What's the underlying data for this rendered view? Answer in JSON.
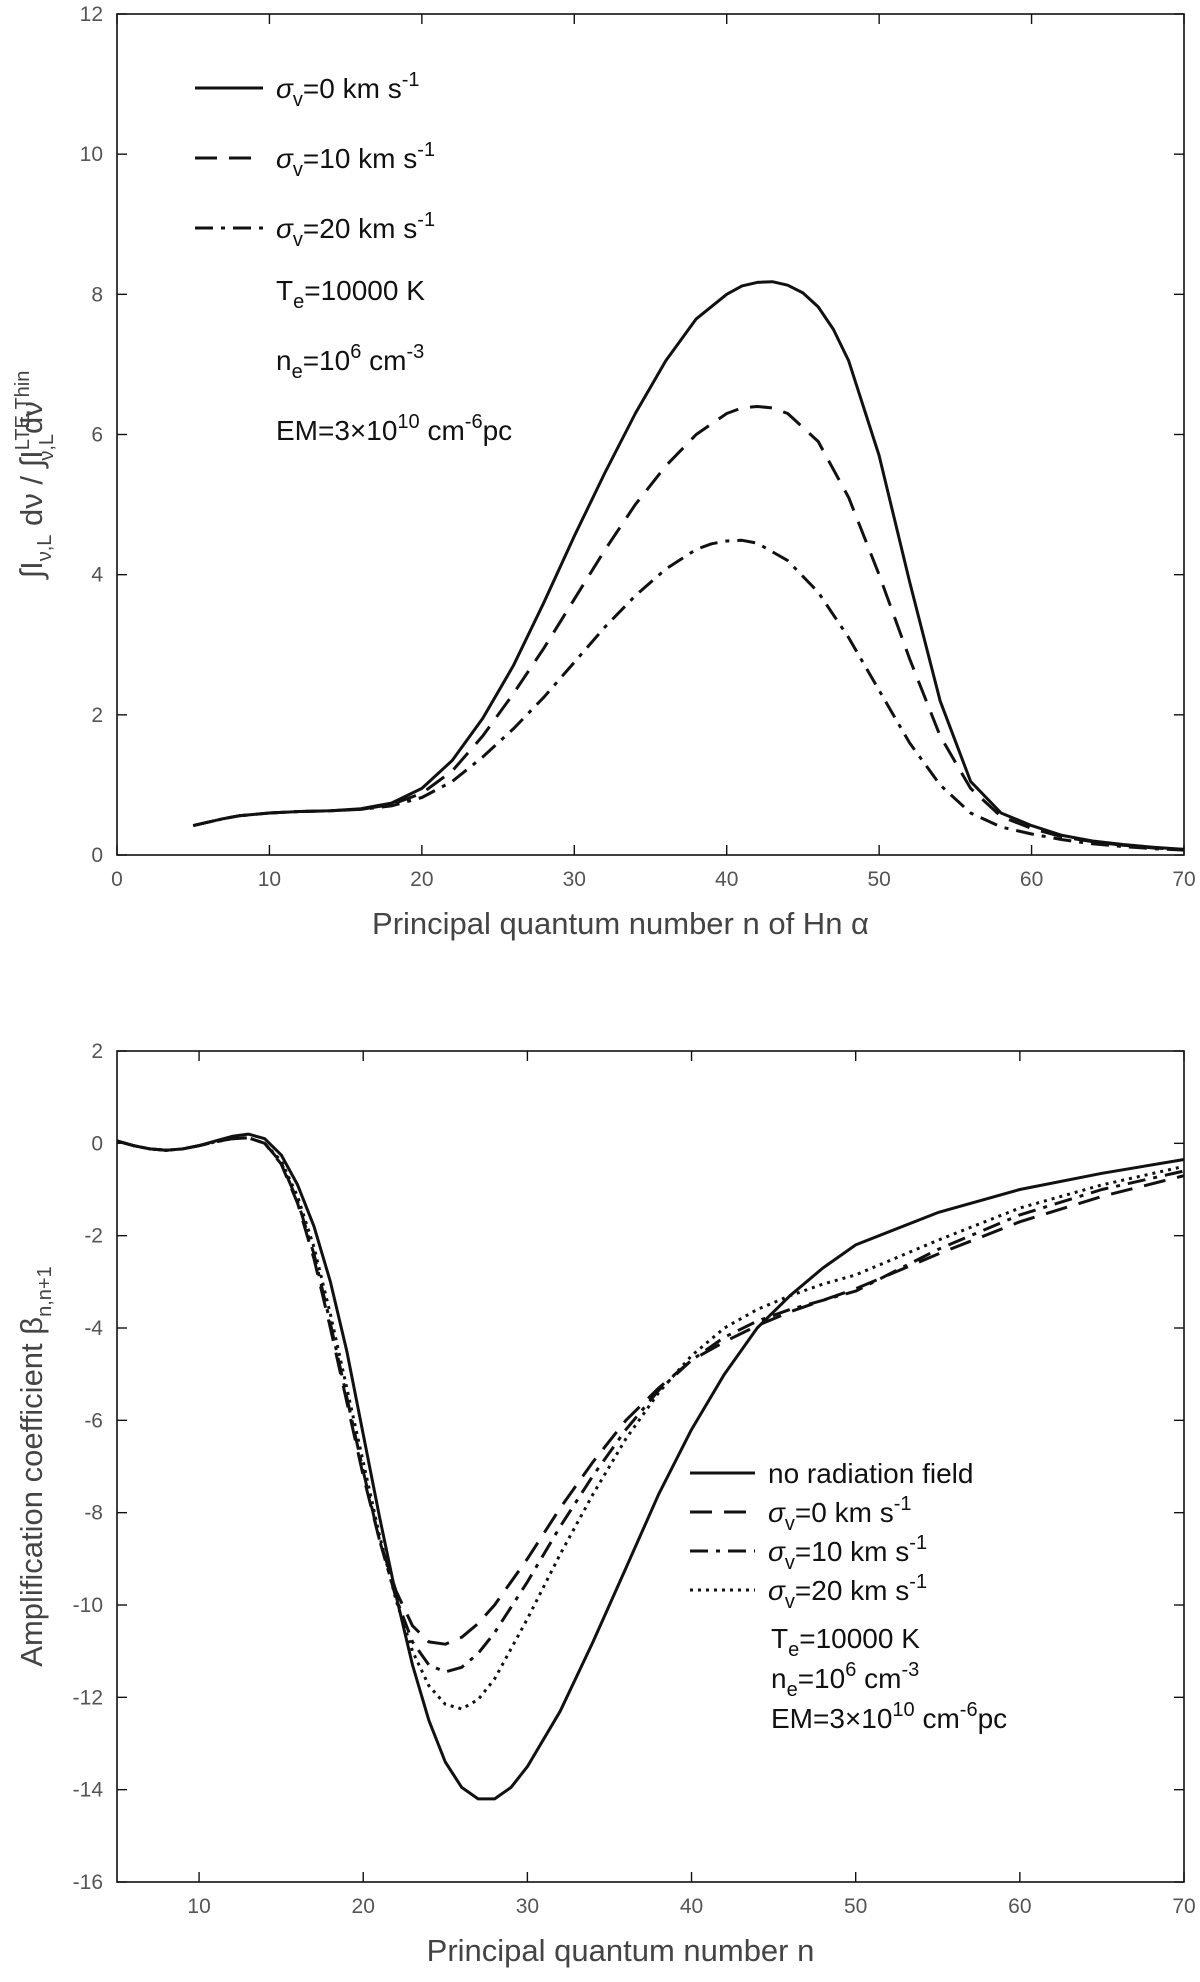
{
  "chart_data": [
    {
      "type": "line",
      "id": "top",
      "xlabel": "Principal quantum number n of Hn α",
      "ylabel": "∫I_{ν,L} dν / ∫I_{ν,L}^{LTE,Thin} dν",
      "ylabel_parts": {
        "a": "∫I",
        "a_sub": "ν,L",
        "b": " dν / ∫I",
        "b_sup": "LTE,Thin",
        "b_sub": "ν,L",
        "c": "dν"
      },
      "xlim": [
        0,
        70
      ],
      "ylim": [
        0,
        12
      ],
      "xticks": [
        "0",
        "10",
        "20",
        "30",
        "40",
        "50",
        "60",
        "70"
      ],
      "yticks": [
        "0",
        "2",
        "4",
        "6",
        "8",
        "10",
        "12"
      ],
      "legend_position": "top-left",
      "series": [
        {
          "name": "σv=0 km s-1",
          "label": {
            "sym": "σ",
            "sub": "v",
            "text": "=0 km s",
            "sup": "-1"
          },
          "style": "solid",
          "x": [
            5,
            6,
            7,
            8,
            9,
            10,
            12,
            14,
            16,
            18,
            20,
            22,
            24,
            26,
            28,
            30,
            32,
            34,
            36,
            38,
            40,
            41,
            42,
            43,
            44,
            45,
            46,
            47,
            48,
            50,
            52,
            54,
            56,
            58,
            60,
            62,
            64,
            66,
            68,
            70
          ],
          "y": [
            0.42,
            0.47,
            0.52,
            0.56,
            0.58,
            0.6,
            0.62,
            0.63,
            0.66,
            0.74,
            0.95,
            1.35,
            1.95,
            2.7,
            3.6,
            4.55,
            5.45,
            6.3,
            7.05,
            7.65,
            8.0,
            8.12,
            8.17,
            8.18,
            8.13,
            8.02,
            7.82,
            7.5,
            7.05,
            5.7,
            3.9,
            2.2,
            1.05,
            0.6,
            0.42,
            0.28,
            0.2,
            0.15,
            0.11,
            0.08
          ]
        },
        {
          "name": "σv=10 km s-1",
          "label": {
            "sym": "σ",
            "sub": "v",
            "text": "=10 km s",
            "sup": "-1"
          },
          "style": "dashed",
          "x": [
            5,
            6,
            7,
            8,
            9,
            10,
            12,
            14,
            16,
            18,
            20,
            22,
            24,
            26,
            28,
            30,
            32,
            34,
            36,
            38,
            40,
            41,
            42,
            43,
            44,
            46,
            48,
            50,
            52,
            54,
            56,
            58,
            60,
            62,
            64,
            66,
            68,
            70
          ],
          "y": [
            0.42,
            0.47,
            0.52,
            0.56,
            0.58,
            0.6,
            0.62,
            0.63,
            0.65,
            0.72,
            0.88,
            1.2,
            1.7,
            2.3,
            2.95,
            3.65,
            4.35,
            5.0,
            5.55,
            6.0,
            6.3,
            6.38,
            6.4,
            6.38,
            6.3,
            5.9,
            5.1,
            4.0,
            2.8,
            1.7,
            0.95,
            0.55,
            0.38,
            0.26,
            0.19,
            0.14,
            0.1,
            0.08
          ]
        },
        {
          "name": "σv=20 km s-1",
          "label": {
            "sym": "σ",
            "sub": "v",
            "text": "=20 km s",
            "sup": "-1"
          },
          "style": "dashdot",
          "x": [
            5,
            6,
            7,
            8,
            9,
            10,
            12,
            14,
            16,
            18,
            20,
            22,
            24,
            26,
            28,
            30,
            32,
            34,
            36,
            38,
            39,
            40,
            41,
            42,
            44,
            46,
            48,
            50,
            52,
            54,
            56,
            58,
            60,
            62,
            64,
            66,
            68,
            70
          ],
          "y": [
            0.42,
            0.47,
            0.52,
            0.56,
            0.58,
            0.6,
            0.62,
            0.63,
            0.65,
            0.7,
            0.82,
            1.05,
            1.4,
            1.8,
            2.25,
            2.75,
            3.25,
            3.7,
            4.08,
            4.36,
            4.44,
            4.48,
            4.49,
            4.45,
            4.2,
            3.75,
            3.1,
            2.35,
            1.6,
            1.0,
            0.6,
            0.4,
            0.3,
            0.22,
            0.16,
            0.12,
            0.09,
            0.07
          ]
        }
      ],
      "annotations": [
        {
          "base": "T",
          "sub": "e",
          "text": "=10000 K",
          "sup": "",
          "tail": ""
        },
        {
          "base": "n",
          "sub": "e",
          "text": "=10",
          "sup": "6",
          "tail": " cm",
          "sup2": "-3"
        },
        {
          "base": "EM=3×10",
          "sub": "",
          "text": "",
          "sup": "10",
          "tail": " cm",
          "sup2": "-6",
          "tail2": "pc"
        }
      ]
    },
    {
      "type": "line",
      "id": "bottom",
      "xlabel": "Principal quantum number n",
      "ylabel": "Amplification coefficient β n,n+1",
      "ylabel_parts": {
        "a": "Amplification coefficient  β",
        "a_sub": "n,n+1"
      },
      "xlim": [
        5,
        70
      ],
      "ylim": [
        -16,
        2
      ],
      "xticks": [
        "10",
        "20",
        "30",
        "40",
        "50",
        "60",
        "70"
      ],
      "yticks": [
        "-16",
        "-14",
        "-12",
        "-10",
        "-8",
        "-6",
        "-4",
        "-2",
        "0",
        "2"
      ],
      "legend_position": "center-right",
      "series": [
        {
          "name": "no radiation field",
          "label": {
            "sym": "",
            "sub": "",
            "text": "no radiation field",
            "sup": ""
          },
          "style": "solid",
          "x": [
            5,
            6,
            7,
            8,
            9,
            10,
            11,
            12,
            13,
            14,
            15,
            16,
            17,
            18,
            19,
            20,
            21,
            22,
            23,
            24,
            25,
            26,
            27,
            28,
            29,
            30,
            32,
            34,
            36,
            38,
            40,
            42,
            44,
            46,
            48,
            50,
            55,
            60,
            65,
            70
          ],
          "y": [
            0.05,
            -0.05,
            -0.12,
            -0.15,
            -0.12,
            -0.05,
            0.05,
            0.15,
            0.2,
            0.1,
            -0.25,
            -0.9,
            -1.8,
            -3.0,
            -4.5,
            -6.3,
            -8.1,
            -9.8,
            -11.3,
            -12.5,
            -13.4,
            -13.95,
            -14.2,
            -14.2,
            -13.95,
            -13.5,
            -12.3,
            -10.8,
            -9.2,
            -7.6,
            -6.2,
            -5.0,
            -4.0,
            -3.3,
            -2.7,
            -2.2,
            -1.5,
            -1.0,
            -0.65,
            -0.35
          ]
        },
        {
          "name": "σv=0 km s-1",
          "label": {
            "sym": "σ",
            "sub": "v",
            "text": "=0 km s",
            "sup": "-1"
          },
          "style": "dashed",
          "x": [
            5,
            6,
            7,
            8,
            9,
            10,
            11,
            12,
            13,
            14,
            15,
            16,
            17,
            18,
            19,
            20,
            21,
            22,
            23,
            24,
            25,
            26,
            27,
            28,
            30,
            32,
            34,
            36,
            38,
            40,
            42,
            44,
            46,
            48,
            50,
            55,
            60,
            65,
            70
          ],
          "y": [
            0.05,
            -0.05,
            -0.12,
            -0.15,
            -0.12,
            -0.05,
            0.03,
            0.1,
            0.12,
            0.0,
            -0.45,
            -1.3,
            -2.5,
            -4.0,
            -5.6,
            -7.2,
            -8.6,
            -9.7,
            -10.45,
            -10.8,
            -10.85,
            -10.7,
            -10.4,
            -10.0,
            -9.0,
            -7.9,
            -6.9,
            -6.0,
            -5.3,
            -4.7,
            -4.3,
            -3.95,
            -3.65,
            -3.4,
            -3.15,
            -2.4,
            -1.7,
            -1.15,
            -0.7
          ]
        },
        {
          "name": "σv=10 km s-1",
          "label": {
            "sym": "σ",
            "sub": "v",
            "text": "=10 km s",
            "sup": "-1"
          },
          "style": "dashdot",
          "x": [
            5,
            6,
            7,
            8,
            9,
            10,
            11,
            12,
            13,
            14,
            15,
            16,
            17,
            18,
            19,
            20,
            21,
            22,
            23,
            24,
            25,
            26,
            27,
            28,
            30,
            32,
            34,
            36,
            38,
            40,
            42,
            44,
            46,
            48,
            50,
            55,
            60,
            65,
            70
          ],
          "y": [
            0.05,
            -0.05,
            -0.12,
            -0.15,
            -0.12,
            -0.05,
            0.03,
            0.1,
            0.12,
            0.0,
            -0.42,
            -1.25,
            -2.4,
            -3.9,
            -5.5,
            -7.1,
            -8.6,
            -9.85,
            -10.8,
            -11.3,
            -11.45,
            -11.35,
            -11.05,
            -10.6,
            -9.5,
            -8.3,
            -7.2,
            -6.2,
            -5.35,
            -4.7,
            -4.2,
            -3.85,
            -3.6,
            -3.4,
            -3.2,
            -2.3,
            -1.55,
            -1.0,
            -0.6
          ]
        },
        {
          "name": "σv=20 km s-1",
          "label": {
            "sym": "σ",
            "sub": "v",
            "text": "=20 km s",
            "sup": "-1"
          },
          "style": "dotted",
          "x": [
            5,
            6,
            7,
            8,
            9,
            10,
            11,
            12,
            13,
            14,
            15,
            16,
            17,
            18,
            19,
            20,
            21,
            22,
            23,
            24,
            25,
            26,
            27,
            28,
            30,
            32,
            34,
            36,
            38,
            40,
            42,
            44,
            46,
            48,
            50,
            55,
            60,
            65,
            70
          ],
          "y": [
            0.05,
            -0.05,
            -0.12,
            -0.15,
            -0.12,
            -0.05,
            0.03,
            0.1,
            0.12,
            0.0,
            -0.38,
            -1.15,
            -2.25,
            -3.7,
            -5.3,
            -6.9,
            -8.5,
            -9.9,
            -11.0,
            -11.75,
            -12.15,
            -12.25,
            -12.05,
            -11.6,
            -10.3,
            -8.9,
            -7.6,
            -6.4,
            -5.4,
            -4.6,
            -4.0,
            -3.6,
            -3.3,
            -3.05,
            -2.85,
            -2.1,
            -1.4,
            -0.9,
            -0.5
          ]
        }
      ],
      "annotations": [
        {
          "base": "T",
          "sub": "e",
          "text": "=10000 K",
          "sup": "",
          "tail": ""
        },
        {
          "base": "n",
          "sub": "e",
          "text": "=10",
          "sup": "6",
          "tail": " cm",
          "sup2": "-3"
        },
        {
          "base": "EM=3×10",
          "sub": "",
          "text": "",
          "sup": "10",
          "tail": " cm",
          "sup2": "-6",
          "tail2": "pc"
        }
      ]
    }
  ]
}
